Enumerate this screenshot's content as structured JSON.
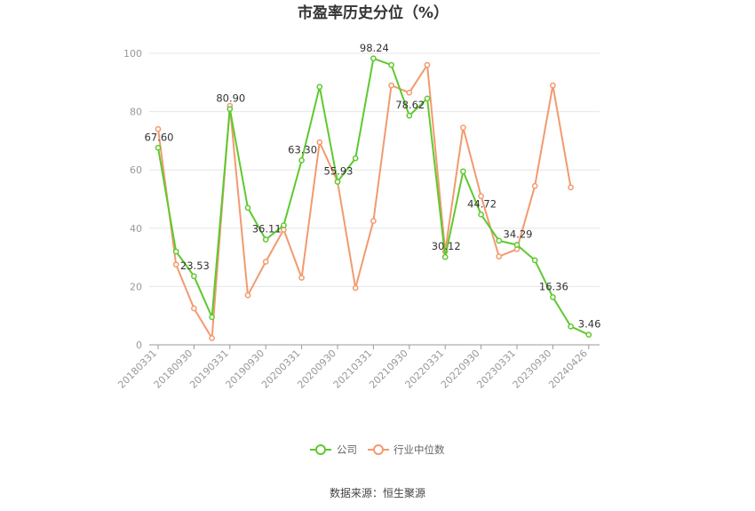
{
  "chart_data": {
    "type": "line",
    "title": "市盈率历史分位（%）",
    "ylim": [
      0,
      100
    ],
    "y_ticks": [
      0,
      20,
      40,
      60,
      80,
      100
    ],
    "x_tick_labels": [
      "20180331",
      "20180930",
      "20190331",
      "20190930",
      "20200331",
      "20200930",
      "20210331",
      "20210930",
      "20220331",
      "20220930",
      "20230331",
      "20230930",
      "20240426"
    ],
    "series": [
      {
        "name": "公司",
        "color": "#5ec92f",
        "values": [
          67.6,
          32,
          23.53,
          9.5,
          80.9,
          47,
          36.11,
          41,
          63.3,
          88.5,
          55.93,
          64,
          98.24,
          96,
          78.62,
          84.5,
          30.12,
          59.5,
          44.72,
          35.7,
          34.29,
          29,
          16.36,
          6.3,
          3.46
        ]
      },
      {
        "name": "行业中位数",
        "color": "#f29a6f",
        "values": [
          74,
          27.5,
          12.5,
          2.3,
          82,
          17,
          28.5,
          39.5,
          23,
          69.5,
          56,
          19.5,
          42.5,
          89,
          86.5,
          96,
          32,
          74.5,
          51,
          30.3,
          32.8,
          54.5,
          89,
          54,
          null
        ]
      }
    ],
    "data_labels": [
      {
        "index": 0,
        "text": "67.60"
      },
      {
        "index": 2,
        "text": "23.53"
      },
      {
        "index": 4,
        "text": "80.90"
      },
      {
        "index": 6,
        "text": "36.11"
      },
      {
        "index": 8,
        "text": "63.30"
      },
      {
        "index": 10,
        "text": "55.93"
      },
      {
        "index": 12,
        "text": "98.24"
      },
      {
        "index": 14,
        "text": "78.62"
      },
      {
        "index": 16,
        "text": "30.12"
      },
      {
        "index": 18,
        "text": "44.72"
      },
      {
        "index": 20,
        "text": "34.29"
      },
      {
        "index": 22,
        "text": "16.36"
      },
      {
        "index": 24,
        "text": "3.46"
      }
    ],
    "grid": true,
    "legend_position": "bottom"
  },
  "source": "数据来源：恒生聚源"
}
